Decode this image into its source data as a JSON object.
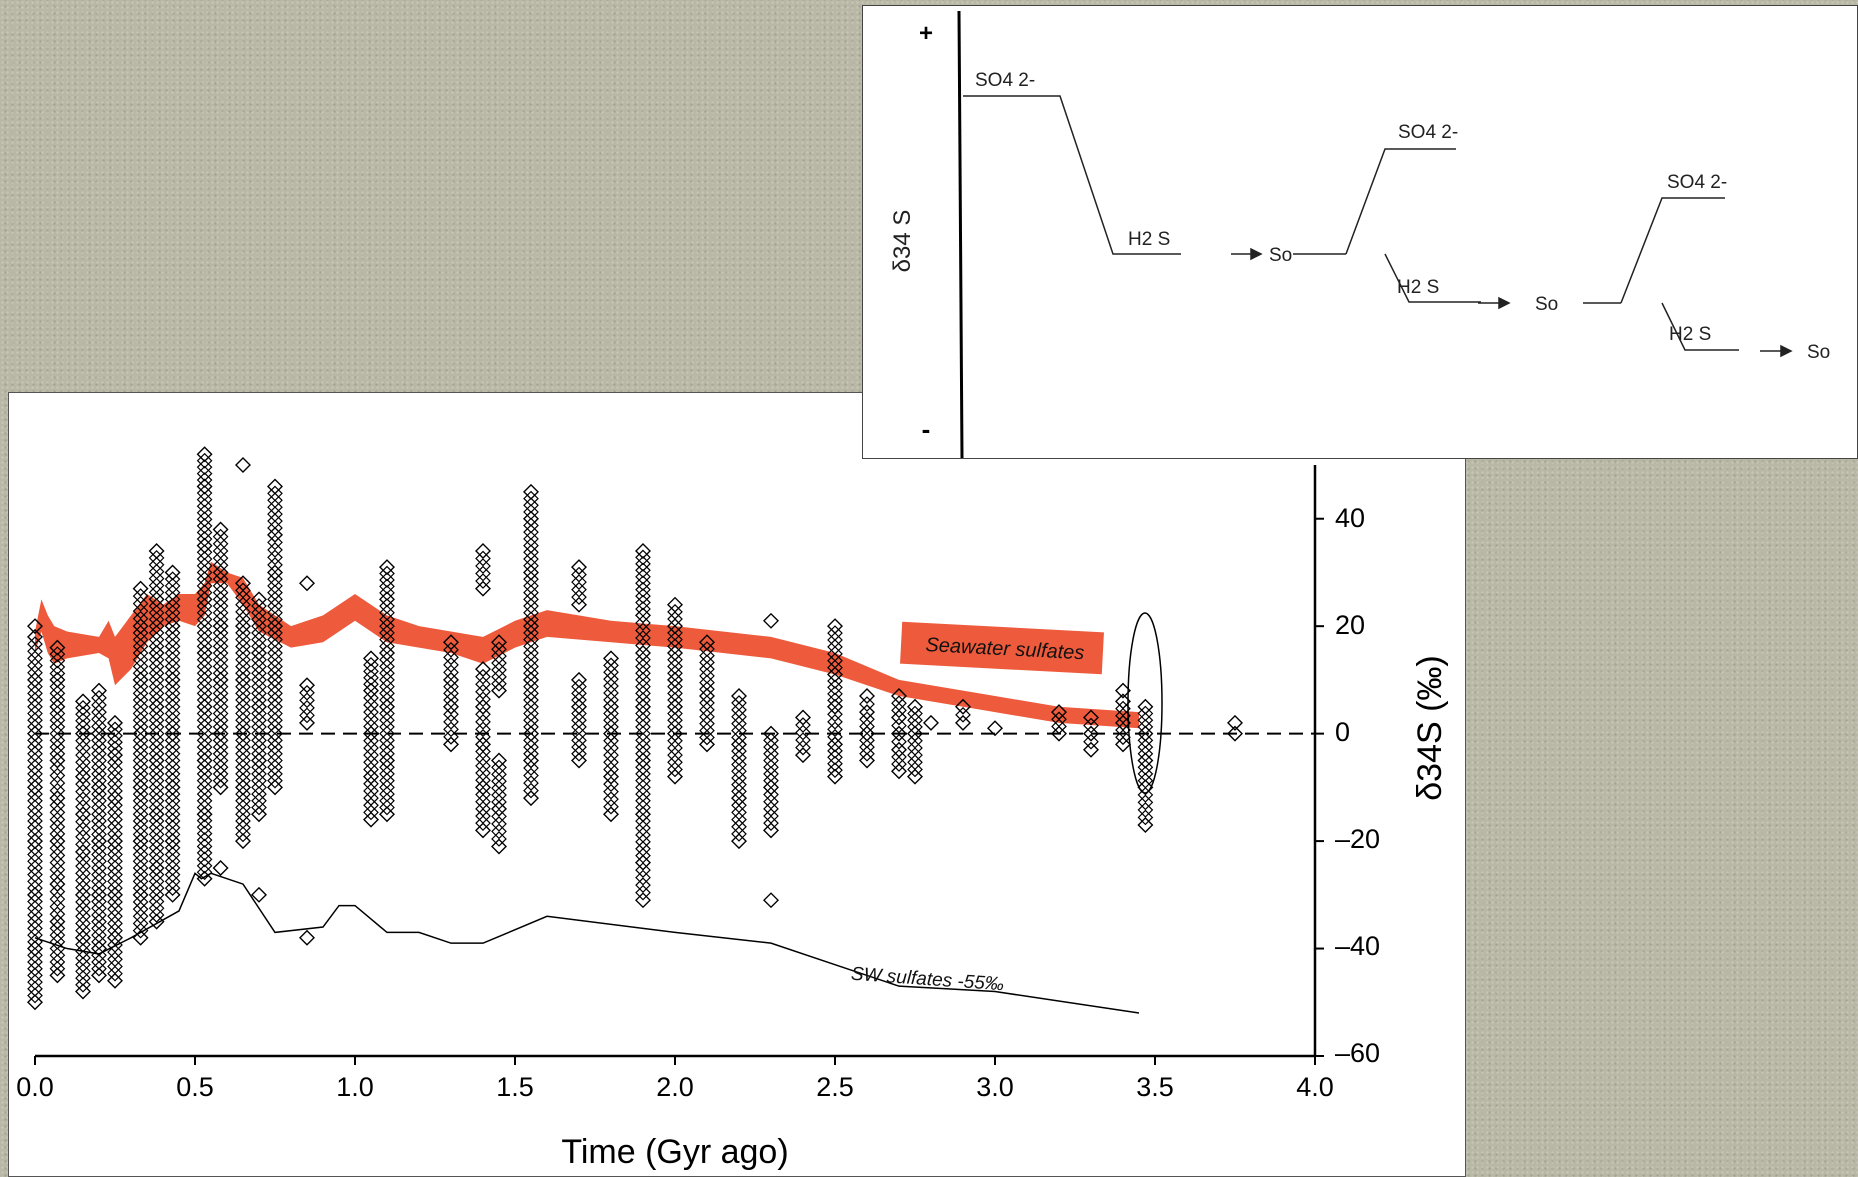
{
  "chart_data": {
    "type": "scatter",
    "xlabel": "Time (Gyr ago)",
    "ylabel": "δ34S (‰)",
    "xlim": [
      0.0,
      4.0
    ],
    "ylim": [
      -60,
      50
    ],
    "x_ticks": [
      "0.0",
      "0.5",
      "1.0",
      "1.5",
      "2.0",
      "2.5",
      "3.0",
      "3.5",
      "4.0"
    ],
    "y_ticks": [
      "40",
      "20",
      "0",
      "–20",
      "–40",
      "–60"
    ],
    "y_axis_side": "right",
    "reference_line": {
      "y": 0,
      "style": "dashed"
    },
    "annotations": [
      "Seawater sulfates",
      "SW sulfates -55‰"
    ],
    "series": [
      {
        "name": "Seawater sulfates",
        "kind": "band",
        "color": "#ee5a3c",
        "x": [
          0.0,
          0.02,
          0.04,
          0.06,
          0.1,
          0.2,
          0.23,
          0.25,
          0.3,
          0.35,
          0.4,
          0.45,
          0.5,
          0.53,
          0.55,
          0.6,
          0.65,
          0.7,
          0.8,
          0.9,
          1.0,
          1.1,
          1.2,
          1.3,
          1.4,
          1.5,
          1.6,
          1.8,
          2.0,
          2.3,
          2.5,
          2.7,
          3.0,
          3.2,
          3.45
        ],
        "lower": [
          15,
          19,
          15,
          13,
          14,
          15,
          14,
          9,
          12,
          17,
          20,
          21,
          20,
          22,
          28,
          28,
          24,
          19,
          16,
          17,
          21,
          17,
          16,
          15,
          13,
          16,
          18,
          17,
          16,
          14,
          11,
          7,
          4,
          2,
          1
        ],
        "upper": [
          19,
          25,
          22,
          20,
          19,
          18,
          21,
          18,
          22,
          26,
          24,
          26,
          26,
          28,
          32,
          30,
          29,
          24,
          20,
          22,
          26,
          22,
          20,
          19,
          18,
          21,
          23,
          21,
          20,
          18,
          15,
          10,
          7,
          5,
          4
        ]
      },
      {
        "name": "SW sulfates -55‰",
        "kind": "line",
        "color": "#000000",
        "x": [
          0.0,
          0.1,
          0.2,
          0.3,
          0.45,
          0.5,
          0.52,
          0.55,
          0.65,
          0.75,
          0.9,
          0.95,
          1.0,
          1.1,
          1.2,
          1.3,
          1.4,
          1.6,
          2.0,
          2.3,
          2.5,
          2.7,
          3.0,
          3.45
        ],
        "y": [
          -38,
          -40,
          -41,
          -38,
          -33,
          -26,
          -27,
          -26,
          -28,
          -37,
          -36,
          -32,
          -32,
          -37,
          -37,
          -39,
          -39,
          -34,
          -37,
          -39,
          -43,
          -47,
          -48,
          -52
        ]
      },
      {
        "name": "",
        "kind": "scatter",
        "marker": "diamond",
        "clusters": [
          {
            "x": 0.0,
            "y": [
              -50,
              -40,
              -30,
              -20,
              -10,
              0,
              10,
              18,
              20
            ]
          },
          {
            "x": 0.07,
            "y": [
              -45,
              -35,
              -28,
              -20,
              -12,
              -5,
              5,
              10,
              16
            ]
          },
          {
            "x": 0.15,
            "y": [
              -48,
              -38,
              -30,
              -22,
              -15,
              -8,
              0,
              6
            ]
          },
          {
            "x": 0.2,
            "y": [
              -45,
              -40,
              -30,
              -20,
              -10,
              0,
              8
            ]
          },
          {
            "x": 0.25,
            "y": [
              -46,
              -38,
              -30,
              -20,
              -12,
              -4,
              2
            ]
          },
          {
            "x": 0.33,
            "y": [
              -38,
              -30,
              -20,
              -10,
              0,
              10,
              20,
              27
            ]
          },
          {
            "x": 0.38,
            "y": [
              -35,
              -25,
              -15,
              -5,
              5,
              15,
              25,
              34
            ]
          },
          {
            "x": 0.43,
            "y": [
              -30,
              -20,
              -10,
              0,
              10,
              20,
              30
            ]
          },
          {
            "x": 0.53,
            "y": [
              -27,
              -15,
              -5,
              5,
              15,
              25,
              35,
              46,
              52
            ]
          },
          {
            "x": 0.58,
            "y": [
              -25,
              -10,
              0,
              10,
              20,
              30,
              38
            ]
          },
          {
            "x": 0.65,
            "y": [
              -20,
              -10,
              0,
              10,
              20,
              28,
              50
            ]
          },
          {
            "x": 0.7,
            "y": [
              -30,
              -15,
              -5,
              5,
              15,
              25
            ]
          },
          {
            "x": 0.75,
            "y": [
              -10,
              0,
              10,
              20,
              30,
              37,
              46
            ]
          },
          {
            "x": 0.85,
            "y": [
              -38,
              2,
              9,
              28
            ]
          },
          {
            "x": 1.05,
            "y": [
              -16,
              -8,
              0,
              8,
              14
            ]
          },
          {
            "x": 1.1,
            "y": [
              -15,
              -5,
              5,
              15,
              25,
              31
            ]
          },
          {
            "x": 1.3,
            "y": [
              -2,
              5,
              10,
              17
            ]
          },
          {
            "x": 1.4,
            "y": [
              -18,
              -10,
              -2,
              5,
              12,
              27,
              34
            ]
          },
          {
            "x": 1.45,
            "y": [
              -21,
              -14,
              -5,
              8,
              17
            ]
          },
          {
            "x": 1.55,
            "y": [
              -12,
              -5,
              0,
              10,
              20,
              30,
              40,
              45
            ]
          },
          {
            "x": 1.7,
            "y": [
              -5,
              5,
              10,
              24,
              31
            ]
          },
          {
            "x": 1.8,
            "y": [
              -15,
              -8,
              0,
              5,
              14
            ]
          },
          {
            "x": 1.9,
            "y": [
              -31,
              -24,
              -15,
              -5,
              5,
              15,
              22,
              34
            ]
          },
          {
            "x": 2.0,
            "y": [
              -8,
              0,
              5,
              10,
              15,
              20,
              24
            ]
          },
          {
            "x": 2.1,
            "y": [
              -2,
              7,
              17
            ]
          },
          {
            "x": 2.2,
            "y": [
              -20,
              -12,
              -2,
              7
            ]
          },
          {
            "x": 2.3,
            "y": [
              -31,
              -18,
              -10,
              0,
              21
            ]
          },
          {
            "x": 2.4,
            "y": [
              -4,
              3
            ]
          },
          {
            "x": 2.5,
            "y": [
              -8,
              -2,
              5,
              11,
              20
            ]
          },
          {
            "x": 2.6,
            "y": [
              -5,
              0,
              4,
              7
            ]
          },
          {
            "x": 2.7,
            "y": [
              -7,
              -3,
              0,
              3,
              7
            ]
          },
          {
            "x": 2.75,
            "y": [
              -8,
              0,
              5
            ]
          },
          {
            "x": 2.8,
            "y": [
              2
            ]
          },
          {
            "x": 2.9,
            "y": [
              2,
              5
            ]
          },
          {
            "x": 3.0,
            "y": [
              1
            ]
          },
          {
            "x": 3.2,
            "y": [
              0,
              4
            ]
          },
          {
            "x": 3.3,
            "y": [
              -3,
              0,
              3
            ]
          },
          {
            "x": 3.4,
            "y": [
              -2,
              2,
              6,
              8
            ]
          },
          {
            "x": 3.47,
            "y": [
              -17,
              -10,
              -5,
              0,
              5
            ]
          },
          {
            "x": 3.75,
            "y": [
              0,
              2
            ]
          }
        ]
      }
    ]
  },
  "inset": {
    "axis_label": "δ34 S",
    "plus_sign": "+",
    "minus_sign": "-",
    "labels": {
      "so4_1": "SO4 2-",
      "h2s_1": "H2 S",
      "s0_1": "So",
      "so4_2": "SO4 2-",
      "h2s_2": "H2 S",
      "s0_2": "So",
      "so4_3": "SO4 2-",
      "h2s_3": "H2 S",
      "s0_3": "So"
    }
  }
}
